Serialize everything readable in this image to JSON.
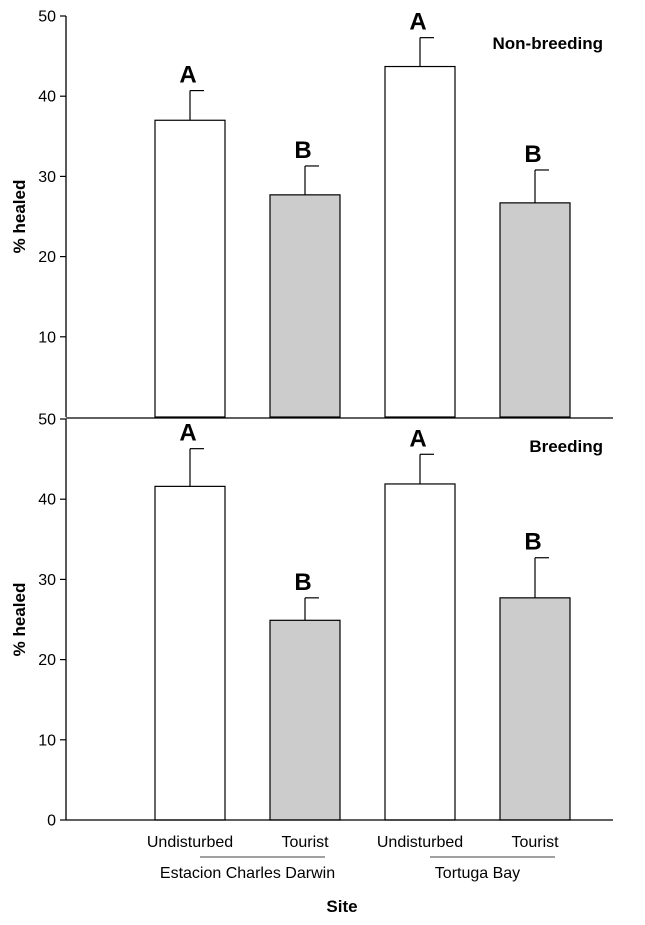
{
  "chart_data": [
    {
      "type": "bar",
      "panel_label": "Non-breeding",
      "categories": [
        "Undisturbed",
        "Tourist",
        "Undisturbed",
        "Tourist"
      ],
      "groups": [
        {
          "name": "Estacion Charles Darwin",
          "categories": [
            "Undisturbed",
            "Tourist"
          ]
        },
        {
          "name": "Tortuga Bay",
          "categories": [
            "Undisturbed",
            "Tourist"
          ]
        }
      ],
      "values": [
        37.0,
        27.7,
        43.7,
        26.7
      ],
      "errors": [
        3.7,
        3.6,
        3.6,
        4.1
      ],
      "significance": [
        "A",
        "B",
        "A",
        "B"
      ],
      "bar_colors": [
        "#ffffff",
        "#cccccc",
        "#ffffff",
        "#cccccc"
      ],
      "ylabel": "% healed",
      "ylim": [
        0,
        50
      ],
      "yticks": [
        10,
        20,
        30,
        40,
        50
      ]
    },
    {
      "type": "bar",
      "panel_label": "Breeding",
      "categories": [
        "Undisturbed",
        "Tourist",
        "Undisturbed",
        "Tourist"
      ],
      "groups": [
        {
          "name": "Estacion Charles Darwin",
          "categories": [
            "Undisturbed",
            "Tourist"
          ]
        },
        {
          "name": "Tortuga Bay",
          "categories": [
            "Undisturbed",
            "Tourist"
          ]
        }
      ],
      "values": [
        41.6,
        24.9,
        41.9,
        27.7
      ],
      "errors": [
        4.7,
        2.8,
        3.7,
        5.0
      ],
      "significance": [
        "A",
        "B",
        "A",
        "B"
      ],
      "bar_colors": [
        "#ffffff",
        "#cccccc",
        "#ffffff",
        "#cccccc"
      ],
      "ylabel": "% healed",
      "xlabel": "Site",
      "ylim": [
        0,
        50
      ],
      "yticks": [
        0,
        10,
        20,
        30,
        40,
        50
      ]
    }
  ]
}
